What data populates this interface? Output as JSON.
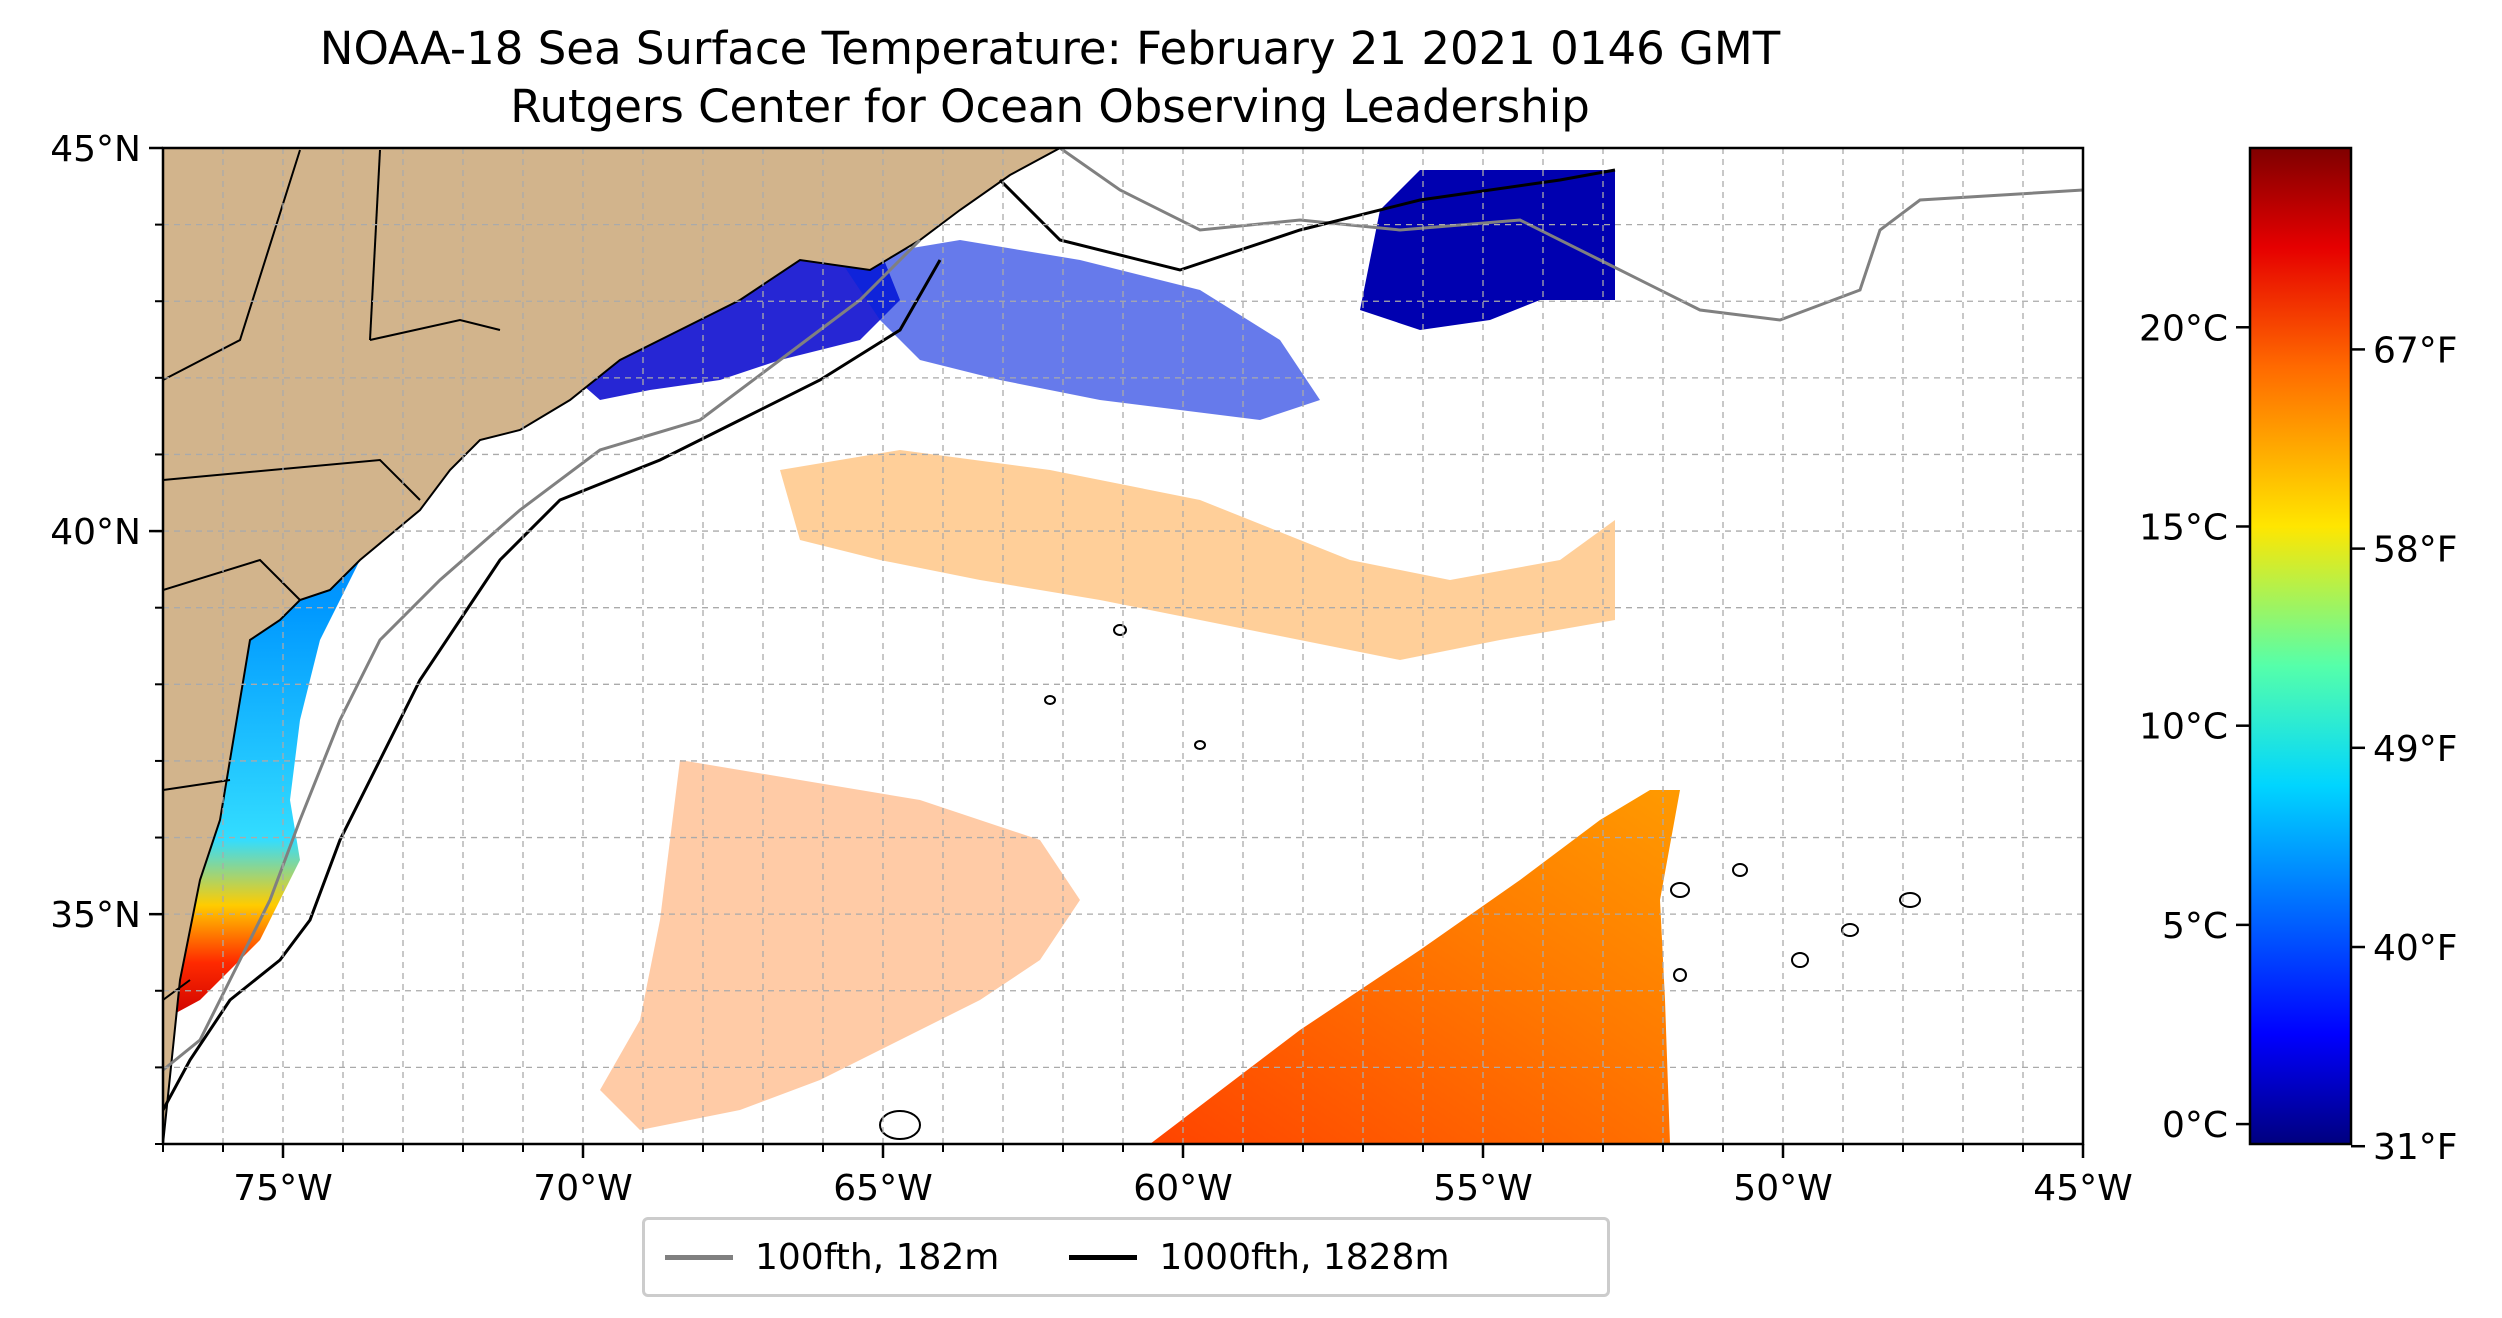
{
  "title": {
    "line1": "NOAA-18 Sea Surface Temperature: February 21 2021 0146 GMT",
    "line2": "Rutgers Center for Ocean Observing Leadership"
  },
  "map": {
    "extent": {
      "lon": [
        -77,
        -45
      ],
      "lat": [
        32,
        45
      ]
    },
    "lat_ticks": [
      {
        "value": 45,
        "label": "45°N"
      },
      {
        "value": 40,
        "label": "40°N"
      },
      {
        "value": 35,
        "label": "35°N"
      }
    ],
    "lon_ticks": [
      {
        "value": -75,
        "label": "75°W"
      },
      {
        "value": -70,
        "label": "70°W"
      },
      {
        "value": -65,
        "label": "65°W"
      },
      {
        "value": -60,
        "label": "60°W"
      },
      {
        "value": -55,
        "label": "55°W"
      },
      {
        "value": -50,
        "label": "50°W"
      },
      {
        "value": -45,
        "label": "45°W"
      }
    ],
    "grid": true,
    "land_color": "#d2b48c",
    "no_data_color": "#ffffff"
  },
  "colorbar": {
    "colormap": "jet",
    "range_c": [
      -0.5,
      24.5
    ],
    "celsius_ticks": [
      {
        "value": 0,
        "label": "0°C"
      },
      {
        "value": 5,
        "label": "5°C"
      },
      {
        "value": 10,
        "label": "10°C"
      },
      {
        "value": 15,
        "label": "15°C"
      },
      {
        "value": 20,
        "label": "20°C"
      }
    ],
    "fahrenheit_ticks": [
      {
        "value": 31,
        "label": "31°F"
      },
      {
        "value": 40,
        "label": "40°F"
      },
      {
        "value": 49,
        "label": "49°F"
      },
      {
        "value": 58,
        "label": "58°F"
      },
      {
        "value": 67,
        "label": "67°F"
      }
    ]
  },
  "legend": {
    "items": [
      {
        "label": "100fth, 182m",
        "color": "#808080"
      },
      {
        "label": "1000fth, 1828m",
        "color": "#000000"
      }
    ]
  }
}
